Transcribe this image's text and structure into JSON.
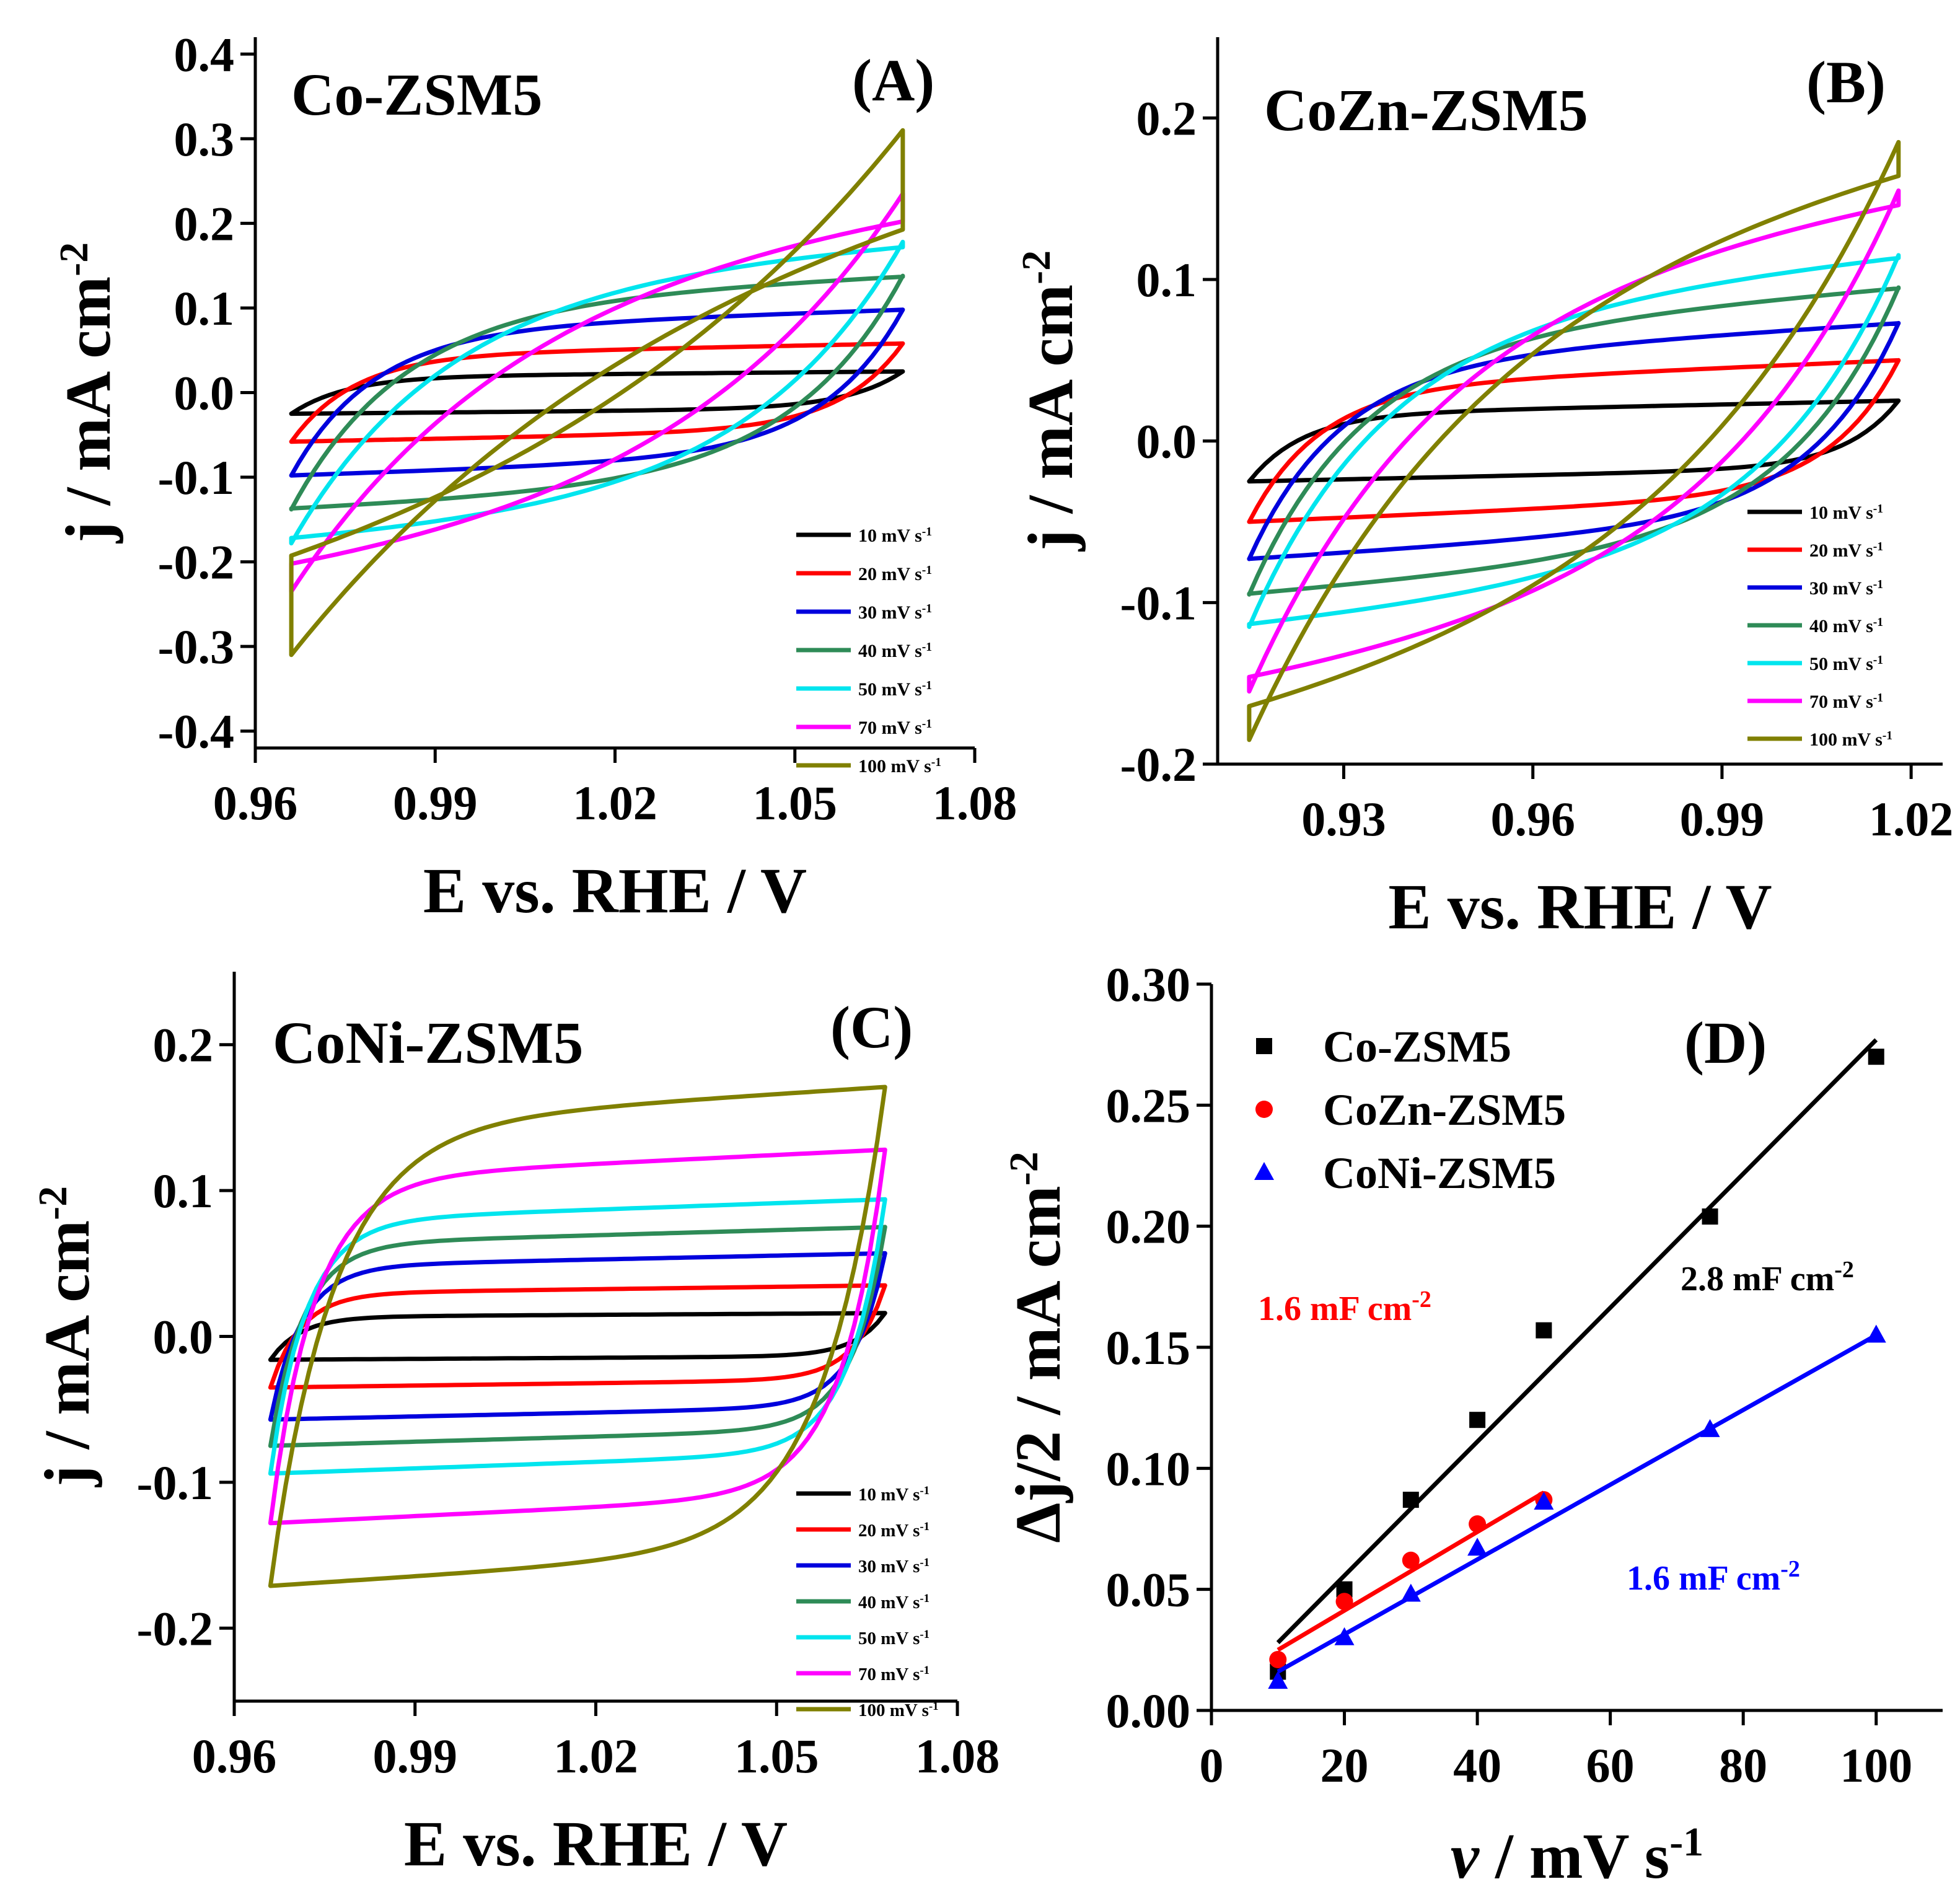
{
  "figure": {
    "panels": [
      {
        "id": "A",
        "title": "Co-ZSM5",
        "tag": "(A)",
        "xlabel": "E vs. RHE / V",
        "ylabel": "j / mA cm",
        "ylabel_sup": "-2",
        "xlim": [
          0.96,
          1.08
        ],
        "ylim": [
          -0.42,
          0.42
        ],
        "xticks": [
          "0.96",
          "0.99",
          "1.02",
          "1.05",
          "1.08"
        ],
        "yticks": [
          "0.4",
          "0.3",
          "0.2",
          "0.1",
          "0.0",
          "-0.1",
          "-0.2",
          "-0.3",
          "-0.4"
        ]
      },
      {
        "id": "B",
        "title": "CoZn-ZSM5",
        "tag": "(B)",
        "xlabel": "E vs. RHE / V",
        "ylabel": "j / mA cm",
        "ylabel_sup": "-2",
        "xlim": [
          0.91,
          1.025
        ],
        "ylim": [
          -0.2,
          0.25
        ],
        "xticks": [
          "0.93",
          "0.96",
          "0.99",
          "1.02"
        ],
        "yticks": [
          "0.2",
          "0.1",
          "0.0",
          "-0.1",
          "-0.2"
        ]
      },
      {
        "id": "C",
        "title": "CoNi-ZSM5",
        "tag": "(C)",
        "xlabel": "E vs. RHE / V",
        "ylabel": "j / mA cm",
        "ylabel_sup": "-2",
        "xlim": [
          0.96,
          1.08
        ],
        "ylim": [
          -0.25,
          0.25
        ],
        "xticks": [
          "0.96",
          "0.99",
          "1.02",
          "1.05",
          "1.08"
        ],
        "yticks": [
          "0.2",
          "0.1",
          "0.0",
          "-0.1",
          "-0.2"
        ]
      },
      {
        "id": "D",
        "tag": "(D)",
        "xlabel_italic": "ν",
        "xlabel_rest": " / mV s",
        "xlabel_sup": "-1",
        "ylabel": "Δj/2 / mA cm",
        "ylabel_sup": "-2",
        "xlim": [
          0,
          110
        ],
        "ylim": [
          0,
          0.3
        ],
        "xticks": [
          "0",
          "20",
          "40",
          "60",
          "80",
          "100"
        ],
        "yticks": [
          "0.30",
          "0.25",
          "0.20",
          "0.15",
          "0.10",
          "0.05",
          "0.00"
        ]
      }
    ],
    "scan_legend": {
      "labels": [
        "10 mV s",
        "20 mV s",
        "30 mV s",
        "40 mV s",
        "50 mV s",
        "70 mV s",
        "100 mV s"
      ],
      "sup": "-1",
      "colors": [
        "#000000",
        "#ff0000",
        "#0000dd",
        "#2e8b57",
        "#00e5ee",
        "#ff00ff",
        "#808000"
      ]
    }
  },
  "chart_data": [
    {
      "type": "line",
      "panel": "A",
      "x_range": [
        0.966,
        1.068
      ],
      "series": [
        {
          "name": "10 mV s-1",
          "color": "#000000",
          "amplitude": 0.025
        },
        {
          "name": "20 mV s-1",
          "color": "#ff0000",
          "amplitude": 0.058
        },
        {
          "name": "30 mV s-1",
          "color": "#0000dd",
          "amplitude": 0.098
        },
        {
          "name": "40 mV s-1",
          "color": "#2e8b57",
          "amplitude": 0.138
        },
        {
          "name": "50 mV s-1",
          "color": "#00e5ee",
          "amplitude": 0.178
        },
        {
          "name": "70 mV s-1",
          "color": "#ff00ff",
          "amplitude": 0.235
        },
        {
          "name": "100 mV s-1",
          "color": "#808000",
          "amplitude": 0.31
        }
      ]
    },
    {
      "type": "line",
      "panel": "B",
      "x_range": [
        0.915,
        1.018
      ],
      "series": [
        {
          "name": "10 mV s-1",
          "color": "#000000",
          "amplitude": 0.025
        },
        {
          "name": "20 mV s-1",
          "color": "#ff0000",
          "amplitude": 0.05
        },
        {
          "name": "30 mV s-1",
          "color": "#0000dd",
          "amplitude": 0.073
        },
        {
          "name": "40 mV s-1",
          "color": "#2e8b57",
          "amplitude": 0.095
        },
        {
          "name": "50 mV s-1",
          "color": "#00e5ee",
          "amplitude": 0.115
        },
        {
          "name": "70 mV s-1",
          "color": "#ff00ff",
          "amplitude": 0.155
        },
        {
          "name": "100 mV s-1",
          "color": "#808000",
          "amplitude": 0.185
        }
      ]
    },
    {
      "type": "line",
      "panel": "C",
      "x_range": [
        0.966,
        1.068
      ],
      "series": [
        {
          "name": "10 mV s-1",
          "color": "#000000",
          "amplitude": 0.016
        },
        {
          "name": "20 mV s-1",
          "color": "#ff0000",
          "amplitude": 0.035
        },
        {
          "name": "30 mV s-1",
          "color": "#0000dd",
          "amplitude": 0.057
        },
        {
          "name": "40 mV s-1",
          "color": "#2e8b57",
          "amplitude": 0.075
        },
        {
          "name": "50 mV s-1",
          "color": "#00e5ee",
          "amplitude": 0.094
        },
        {
          "name": "70 mV s-1",
          "color": "#ff00ff",
          "amplitude": 0.128
        },
        {
          "name": "100 mV s-1",
          "color": "#808000",
          "amplitude": 0.171
        }
      ]
    },
    {
      "type": "scatter",
      "panel": "D",
      "series": [
        {
          "name": "Co-ZSM5",
          "marker": "square",
          "color": "#000000",
          "x": [
            10,
            20,
            30,
            40,
            50,
            75,
            100
          ],
          "y": [
            0.016,
            0.05,
            0.087,
            0.12,
            0.157,
            0.204,
            0.27
          ],
          "fit": [
            [
              10,
              0.028
            ],
            [
              100,
              0.277
            ]
          ],
          "annotation": {
            "text": "2.8 mF cm",
            "sup": "-2",
            "color": "#000000"
          }
        },
        {
          "name": "CoZn-ZSM5",
          "marker": "circle",
          "color": "#ff0000",
          "x": [
            10,
            20,
            30,
            40,
            50
          ],
          "y": [
            0.021,
            0.045,
            0.062,
            0.077,
            0.087
          ],
          "fit": [
            [
              10,
              0.025
            ],
            [
              50,
              0.09
            ]
          ],
          "annotation": {
            "text": "1.6 mF cm",
            "sup": "-2",
            "color": "#ff0000"
          }
        },
        {
          "name": "CoNi-ZSM5",
          "marker": "triangle",
          "color": "#0000ff",
          "x": [
            10,
            20,
            30,
            40,
            50,
            75,
            100
          ],
          "y": [
            0.012,
            0.03,
            0.048,
            0.067,
            0.086,
            0.116,
            0.155
          ],
          "fit": [
            [
              10,
              0.016
            ],
            [
              100,
              0.155
            ]
          ],
          "annotation": {
            "text": "1.6 mF cm",
            "sup": "-2",
            "color": "#0000ff"
          }
        }
      ]
    }
  ]
}
